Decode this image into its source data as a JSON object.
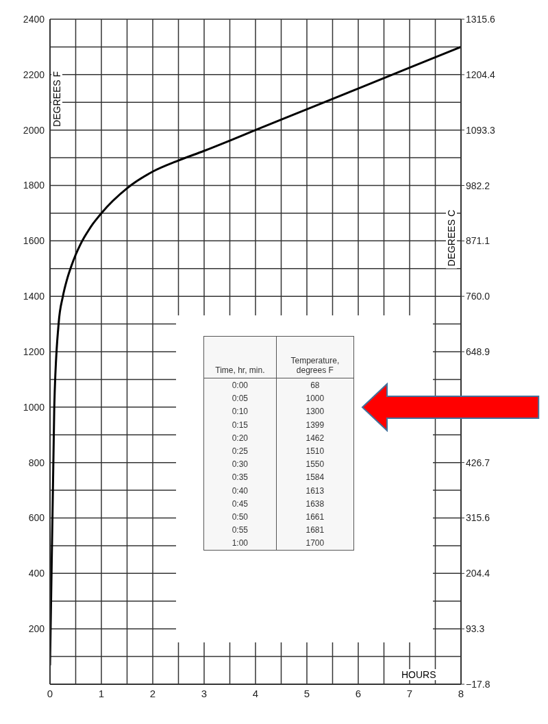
{
  "chart_data": {
    "type": "line",
    "x": [
      0,
      0.083,
      0.167,
      0.25,
      0.333,
      0.417,
      0.5,
      0.583,
      0.667,
      0.75,
      0.833,
      0.917,
      1,
      1.5,
      2,
      2.5,
      3,
      3.5,
      4,
      5,
      6,
      7,
      8
    ],
    "series": [
      {
        "color": "#000000",
        "values": [
          68,
          1000,
          1300,
          1399,
          1462,
          1510,
          1550,
          1584,
          1613,
          1638,
          1661,
          1681,
          1700,
          1790,
          1850,
          1890,
          1925,
          1962,
          2000,
          2075,
          2150,
          2225,
          2300
        ]
      }
    ],
    "xlabel": "HOURS",
    "ylabel": "DEGREES F",
    "y2label": "DEGREES C",
    "xlim": [
      0,
      8
    ],
    "ylim": [
      0,
      2400
    ],
    "y2lim": [
      -17.8,
      1315.6
    ],
    "xticks": [
      0,
      {
        "value": 0.5,
        "label": null
      },
      1,
      {
        "value": 1.5,
        "label": null
      },
      2,
      {
        "value": 2.5,
        "label": null
      },
      3,
      {
        "value": 3.5,
        "label": null
      },
      4,
      {
        "value": 4.5,
        "label": null
      },
      5,
      {
        "value": 5.5,
        "label": null
      },
      6,
      {
        "value": 6.5,
        "label": null
      },
      7,
      {
        "value": 7.5,
        "label": null
      },
      8
    ],
    "yticks": [
      {
        "value": 0,
        "label": null
      },
      {
        "value": 100,
        "label": null
      },
      200,
      {
        "value": 300,
        "label": null
      },
      400,
      {
        "value": 500,
        "label": null
      },
      600,
      {
        "value": 700,
        "label": null
      },
      800,
      {
        "value": 900,
        "label": null
      },
      1000,
      {
        "value": 1100,
        "label": null
      },
      1200,
      {
        "value": 1300,
        "label": null
      },
      1400,
      {
        "value": 1500,
        "label": null
      },
      1600,
      {
        "value": 1700,
        "label": null
      },
      1800,
      {
        "value": 1900,
        "label": null
      },
      2000,
      {
        "value": 2100,
        "label": null
      },
      2200,
      {
        "value": 2300,
        "label": null
      },
      2400
    ],
    "y2ticks": [
      {
        "value": -17.8,
        "label": "−17.8"
      },
      93.3,
      204.4,
      315.6,
      426.7,
      {
        "value": 537.8,
        "label": null
      },
      648.9,
      {
        "value": 760,
        "label": "760.0"
      },
      871.1,
      982.2,
      1093.3,
      1204.4,
      1315.6
    ],
    "grid": true,
    "legend": false,
    "marker": "none",
    "line_style": "solid",
    "annotations": [
      "Time, hr, min.",
      "Temperature, degrees F",
      "0:00",
      "68",
      "0:05",
      "1000",
      "0:10",
      "1300",
      "0:15",
      "1399",
      "0:20",
      "1462",
      "0:25",
      "1510",
      "0:30",
      "1550",
      "0:35",
      "1584",
      "0:40",
      "1613",
      "0:45",
      "1638",
      "0:50",
      "1661",
      "0:55",
      "1681",
      "1:00",
      "1700"
    ]
  }
}
